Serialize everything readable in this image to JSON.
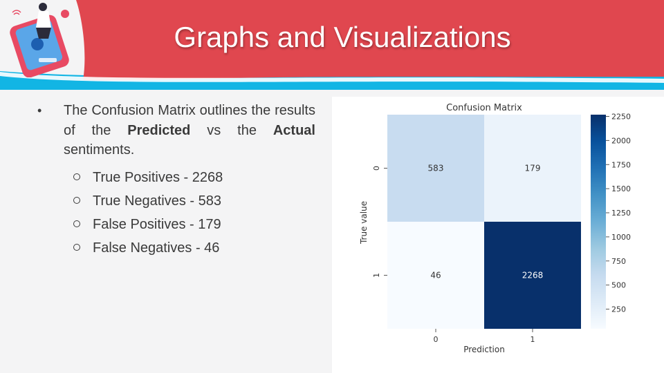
{
  "slide": {
    "title": "Graphs and Visualizations",
    "bullet": {
      "intro": "The Confusion Matrix outlines the results of the ",
      "bold1": "Predicted",
      "mid": " vs the ",
      "bold2": "Actual",
      "end": " sentiments."
    },
    "sub_items": [
      "True Positives - 2268",
      "True Negatives - 583",
      "False Positives - 179",
      "False Negatives - 46"
    ]
  },
  "colors": {
    "banner": "#e0474f",
    "banner_stripe": "#12b5e4",
    "cmap_low": "#f7fbff",
    "cmap_high": "#08306b"
  },
  "icons": {
    "bullet": "bullet-dot",
    "sub_bullet": "hollow-circle",
    "decor": "phone-illustration"
  },
  "chart_data": {
    "type": "heatmap",
    "title": "Confusion Matrix",
    "xlabel": "Prediction",
    "ylabel": "True value",
    "x_categories": [
      "0",
      "1"
    ],
    "y_categories": [
      "0",
      "1"
    ],
    "values": [
      [
        583,
        179
      ],
      [
        46,
        2268
      ]
    ],
    "colorbar": {
      "min": 46,
      "max": 2268,
      "ticks": [
        "250",
        "500",
        "750",
        "1000",
        "1250",
        "1500",
        "1750",
        "2000",
        "2250"
      ]
    },
    "colormap": "Blues"
  }
}
